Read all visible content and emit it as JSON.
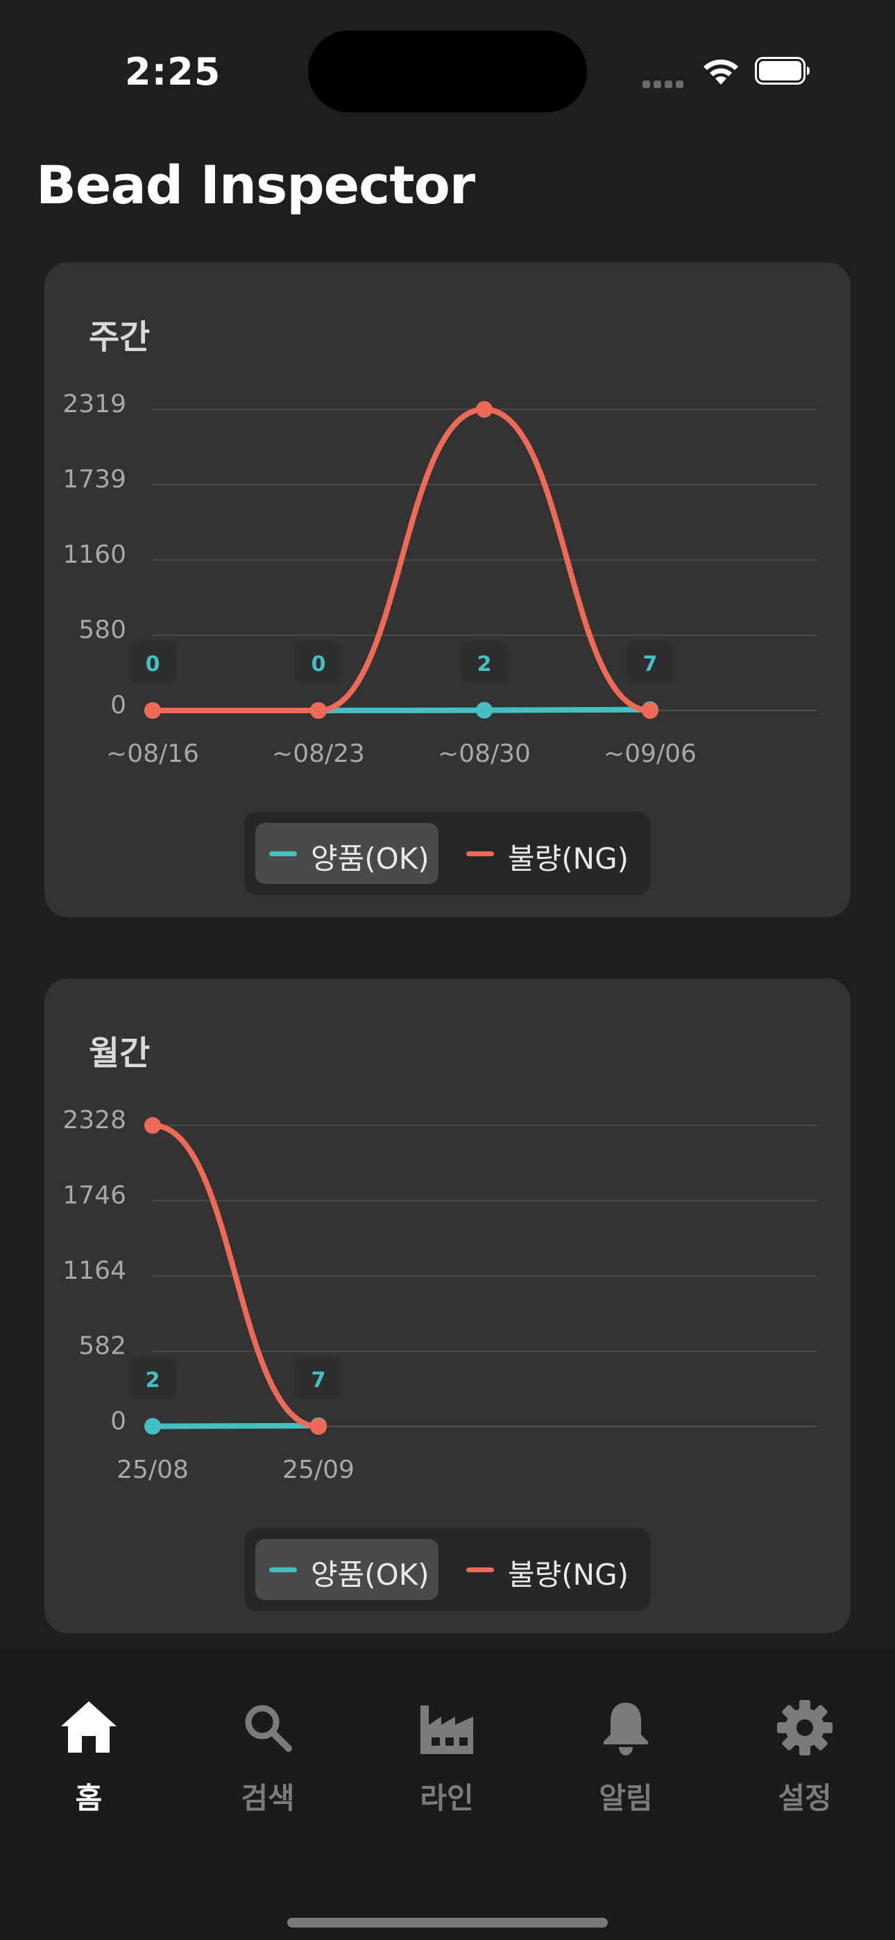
{
  "status_bar": {
    "time": "2:25"
  },
  "app": {
    "title": "Bead Inspector"
  },
  "colors": {
    "ok": "#45bfc2",
    "ng": "#ef6a56",
    "grid": "#4b4b4b",
    "tick": "#a8a8a8",
    "badge_bg": "#2e2e2e"
  },
  "legend": {
    "ok_label": "양품(OK)",
    "ng_label": "불량(NG)"
  },
  "chart_data": [
    {
      "title": "주간",
      "type": "line",
      "categories": [
        "~08/16",
        "~08/23",
        "~08/30",
        "~09/06"
      ],
      "yticks": [
        "0",
        "580",
        "1160",
        "1739",
        "2319"
      ],
      "ylim": [
        0,
        2319
      ],
      "grid": true,
      "legend_position": "bottom",
      "series": [
        {
          "name": "양품(OK)",
          "values": [
            0,
            0,
            2,
            7
          ],
          "labels": [
            "0",
            "0",
            "2",
            "7"
          ],
          "color": "#45bfc2"
        },
        {
          "name": "불량(NG)",
          "values": [
            0,
            0,
            2319,
            0
          ],
          "color": "#ef6a56"
        }
      ]
    },
    {
      "title": "월간",
      "type": "line",
      "categories": [
        "25/08",
        "25/09"
      ],
      "yticks": [
        "0",
        "582",
        "1164",
        "1746",
        "2328"
      ],
      "ylim": [
        0,
        2328
      ],
      "grid": true,
      "legend_position": "bottom",
      "series": [
        {
          "name": "양품(OK)",
          "values": [
            2,
            7
          ],
          "labels": [
            "2",
            "7"
          ],
          "color": "#45bfc2"
        },
        {
          "name": "불량(NG)",
          "values": [
            2328,
            0
          ],
          "color": "#ef6a56"
        }
      ]
    }
  ],
  "tabs": [
    {
      "label": "홈",
      "icon": "home-icon",
      "active": true
    },
    {
      "label": "검색",
      "icon": "search-icon",
      "active": false
    },
    {
      "label": "라인",
      "icon": "factory-icon",
      "active": false
    },
    {
      "label": "알림",
      "icon": "bell-icon",
      "active": false
    },
    {
      "label": "설정",
      "icon": "gear-icon",
      "active": false
    }
  ]
}
